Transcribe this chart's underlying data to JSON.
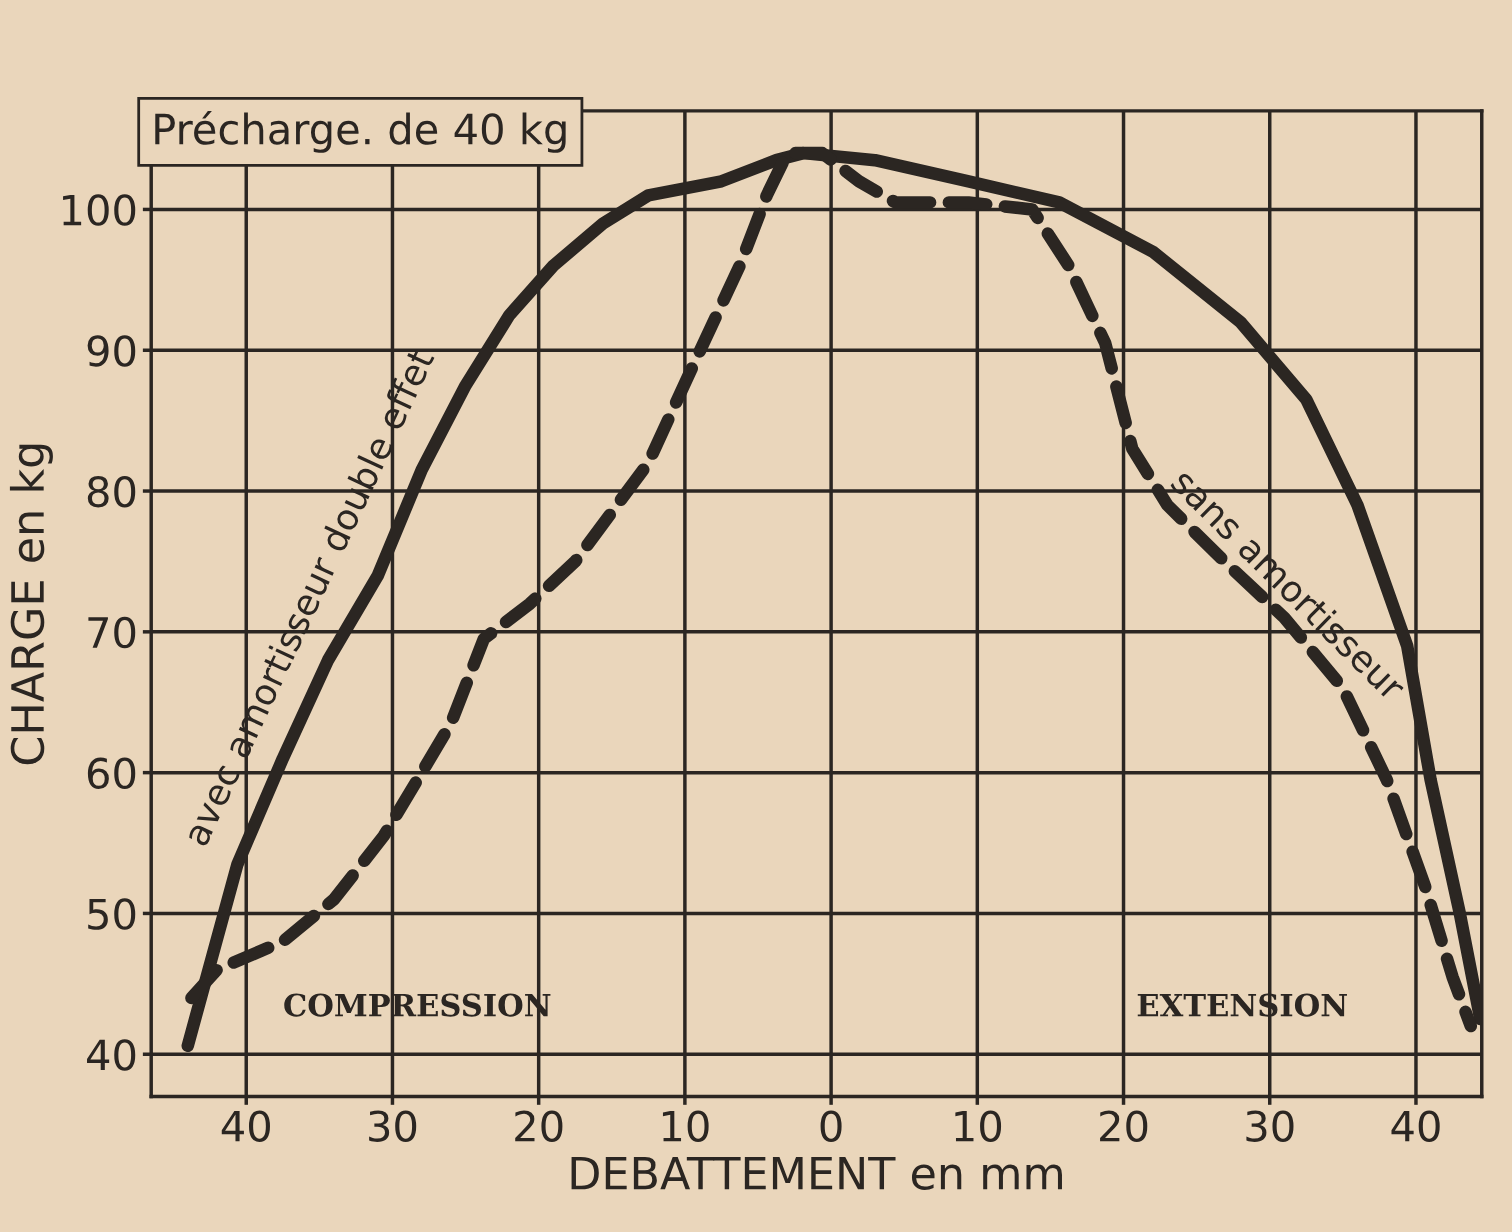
{
  "chart_data": {
    "type": "line",
    "title": "Précharge. de 40 kg",
    "xlabel": "DEBATTEMENT en mm",
    "ylabel": "CHARGE en kg",
    "xlim": [
      -46.5,
      44.5
    ],
    "ylim": [
      37,
      107
    ],
    "xticks": [
      {
        "value": -40,
        "label": "40"
      },
      {
        "value": -30,
        "label": "30"
      },
      {
        "value": -20,
        "label": "20"
      },
      {
        "value": -10,
        "label": "10"
      },
      0,
      10,
      20,
      30,
      40
    ],
    "yticks": [
      40,
      50,
      60,
      70,
      80,
      90,
      100
    ],
    "grid": true,
    "marker": "none",
    "series": [
      {
        "name": "avec amortisseur double effet",
        "color": "#2b2622",
        "line_style": "solid",
        "x": [
          -44,
          -40.6,
          -37.5,
          -34.4,
          -31,
          -28,
          -25,
          -22,
          -19,
          -15.6,
          -12.5,
          -7.5,
          -3.75,
          -1.9,
          3,
          9.4,
          15.6,
          22,
          28,
          32.5,
          36,
          39.4,
          41,
          43,
          44.4
        ],
        "values": [
          40.6,
          53.5,
          61,
          68,
          74,
          81.5,
          87.5,
          92.5,
          96,
          99,
          101,
          102,
          103.5,
          104,
          103.5,
          102,
          100.5,
          97,
          92,
          86.5,
          79,
          69,
          59.5,
          50,
          42.5
        ]
      },
      {
        "name": "sans amortisseur",
        "color": "#2b2622",
        "line_style": "dashed",
        "x": [
          -43.75,
          -42,
          -37.5,
          -34,
          -30.6,
          -28,
          -26,
          -23.75,
          -20.6,
          -17.5,
          -15,
          -12.5,
          -9.4,
          -6.25,
          -4.4,
          -3,
          -0.6,
          1.9,
          4.4,
          9.4,
          13.75,
          16.25,
          18.75,
          20.6,
          23,
          26.9,
          31,
          35,
          38,
          40.6,
          42.5,
          43.75
        ],
        "values": [
          44,
          46,
          48,
          51,
          55.5,
          60,
          63.5,
          69.5,
          72,
          75,
          78.5,
          82,
          89,
          96,
          101,
          104,
          104,
          102,
          100.5,
          100.5,
          100,
          96,
          90.5,
          83,
          79,
          75,
          71,
          66,
          59.5,
          52,
          45.5,
          42
        ]
      }
    ],
    "annotations": [
      "COMPRESSION",
      "EXTENSION"
    ]
  }
}
